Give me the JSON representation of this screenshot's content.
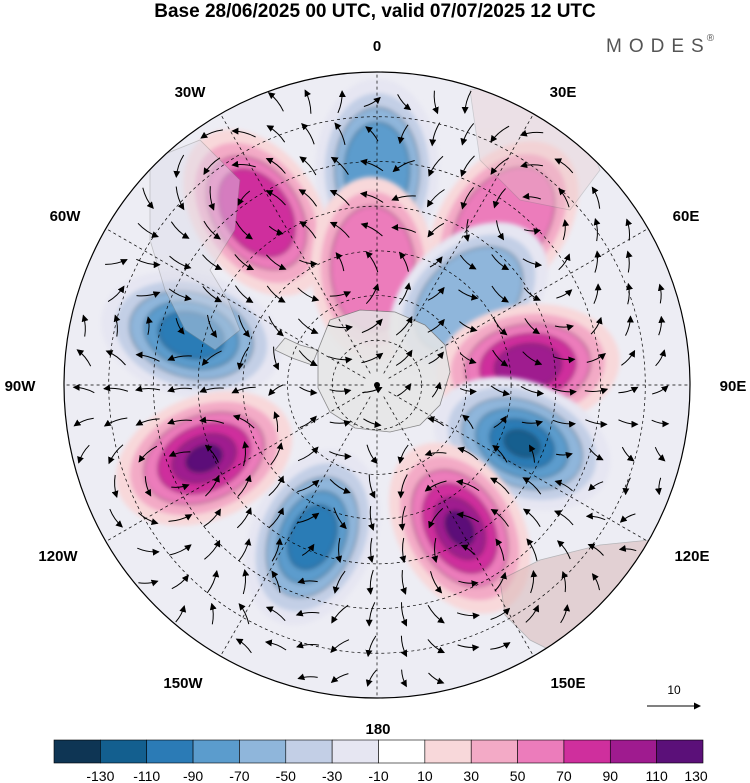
{
  "title": "Base 28/06/2025 00 UTC, valid 07/07/2025 12 UTC",
  "brand": "MODES",
  "brand_reg": "®",
  "longitude_labels": {
    "lon_0": "0",
    "lon_30e": "30E",
    "lon_60e": "60E",
    "lon_90e": "90E",
    "lon_120e": "120E",
    "lon_150e": "150E",
    "lon_180": "180",
    "lon_150w": "150W",
    "lon_120w": "120W",
    "lon_90w": "90W",
    "lon_60w": "60W",
    "lon_30w": "30W"
  },
  "reference_vector": {
    "label": "10"
  },
  "colorbar": {
    "labels": [
      "-130",
      "-110",
      "-90",
      "-70",
      "-50",
      "-30",
      "-10",
      "10",
      "30",
      "50",
      "70",
      "90",
      "110",
      "130"
    ],
    "colors": [
      "#0e3554",
      "#135f8f",
      "#2b7bb6",
      "#5b9ccd",
      "#8fb6db",
      "#c3cfe6",
      "#e6e6f2",
      "#ffffff",
      "#f8d8da",
      "#f3aac6",
      "#ec7cbb",
      "#cf2f9d",
      "#9f1b8f",
      "#5b1079"
    ]
  },
  "field_anomalies": [
    {
      "lon": 0,
      "lat": -42,
      "value": -70
    },
    {
      "lon": 38,
      "lat": -44,
      "value": 60
    },
    {
      "lon": -35,
      "lat": -43,
      "value": 70
    },
    {
      "lon": -75,
      "lat": -47,
      "value": -90
    },
    {
      "lon": -2,
      "lat": -64,
      "value": 50
    },
    {
      "lon": 47,
      "lat": -62,
      "value": -50
    },
    {
      "lon": 83,
      "lat": -56,
      "value": 100
    },
    {
      "lon": 112,
      "lat": -55,
      "value": -120
    },
    {
      "lon": 150,
      "lat": -53,
      "value": 110
    },
    {
      "lon": -157,
      "lat": -53,
      "value": -100
    },
    {
      "lon": -113,
      "lat": -48,
      "value": 120
    }
  ]
}
